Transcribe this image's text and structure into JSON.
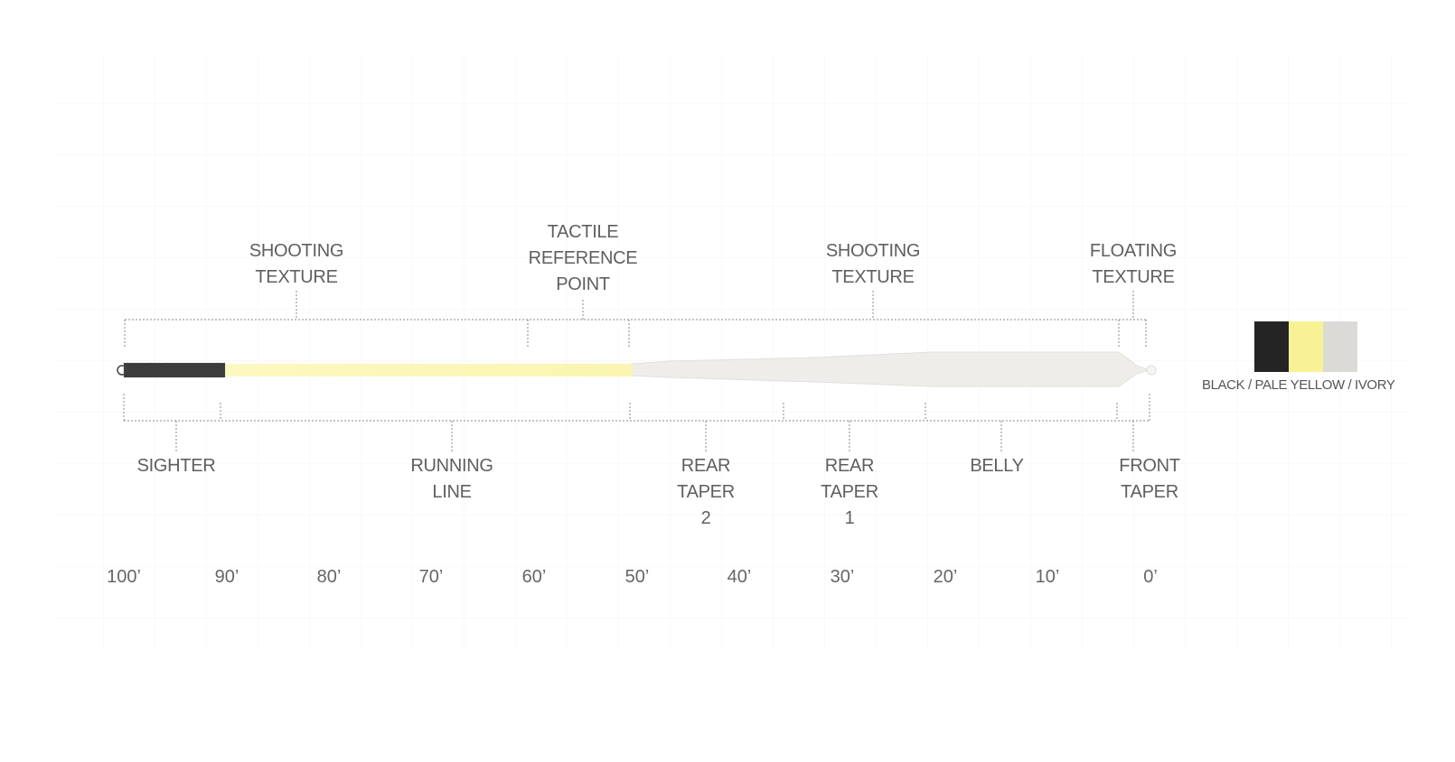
{
  "top_labels": [
    {
      "id": "shooting-texture-left",
      "lines": [
        "SHOOTING",
        "TEXTURE"
      ]
    },
    {
      "id": "tactile-reference-point",
      "lines": [
        "TACTILE",
        "REFERENCE",
        "POINT"
      ]
    },
    {
      "id": "shooting-texture-right",
      "lines": [
        "SHOOTING",
        "TEXTURE"
      ]
    },
    {
      "id": "floating-texture",
      "lines": [
        "FLOATING",
        "TEXTURE"
      ]
    }
  ],
  "bottom_labels": [
    {
      "id": "sighter",
      "lines": [
        "SIGHTER"
      ]
    },
    {
      "id": "running-line",
      "lines": [
        "RUNNING",
        "LINE"
      ]
    },
    {
      "id": "rear-taper-2",
      "lines": [
        "REAR",
        "TAPER",
        "2"
      ]
    },
    {
      "id": "rear-taper-1",
      "lines": [
        "REAR",
        "TAPER",
        "1"
      ]
    },
    {
      "id": "belly",
      "lines": [
        "BELLY"
      ]
    },
    {
      "id": "front-taper",
      "lines": [
        "FRONT",
        "TAPER"
      ]
    }
  ],
  "scale_ticks": [
    "100’",
    "90’",
    "80’",
    "70’",
    "60’",
    "50’",
    "40’",
    "30’",
    "20’",
    "10’",
    "0’"
  ],
  "legend": {
    "text": "BLACK / PALE YELLOW / IVORY",
    "colors": [
      {
        "name": "black",
        "hex": "#242424"
      },
      {
        "name": "pale-yellow",
        "hex": "#f8f294"
      },
      {
        "name": "ivory",
        "hex": "#dcdad6"
      }
    ]
  },
  "line_colors": {
    "sighter": "#3a3a3a",
    "running_line": "#fbf6b8",
    "head": "#ecebe8"
  }
}
